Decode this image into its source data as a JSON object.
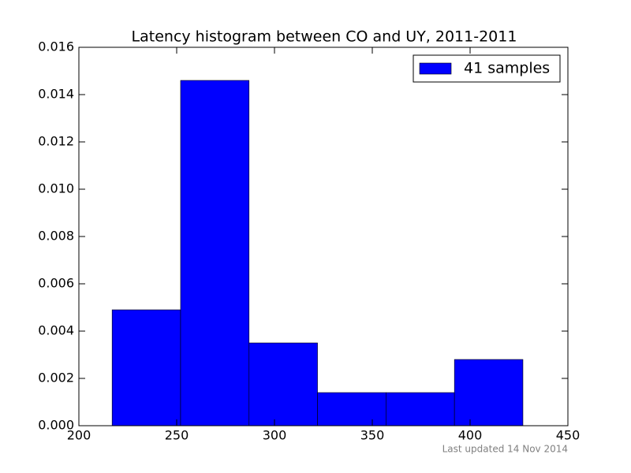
{
  "chart_data": {
    "type": "histogram",
    "title": "Latency histogram between CO and UY, 2011-2011",
    "bins": [
      217,
      252,
      287,
      322,
      357,
      392,
      427
    ],
    "series": [
      {
        "name": "41 samples",
        "color": "#0000ff",
        "values": [
          0.0049,
          0.0146,
          0.0035,
          0.0014,
          0.0014,
          0.0028
        ]
      }
    ],
    "xlim": [
      200,
      450
    ],
    "xticks": [
      200,
      250,
      300,
      350,
      400,
      450
    ],
    "ylim": [
      0,
      0.016
    ],
    "yticks": [
      {
        "value": 0,
        "label": "0.000"
      },
      {
        "value": 0.002,
        "label": "0.002"
      },
      {
        "value": 0.004,
        "label": "0.004"
      },
      {
        "value": 0.006,
        "label": "0.006"
      },
      {
        "value": 0.008,
        "label": "0.008"
      },
      {
        "value": 0.01,
        "label": "0.010"
      },
      {
        "value": 0.012,
        "label": "0.012"
      },
      {
        "value": 0.014,
        "label": "0.014"
      },
      {
        "value": 0.016,
        "label": "0.016"
      }
    ],
    "grid": false,
    "legend": "upper right",
    "footnote": "Last updated 14 Nov 2014"
  }
}
